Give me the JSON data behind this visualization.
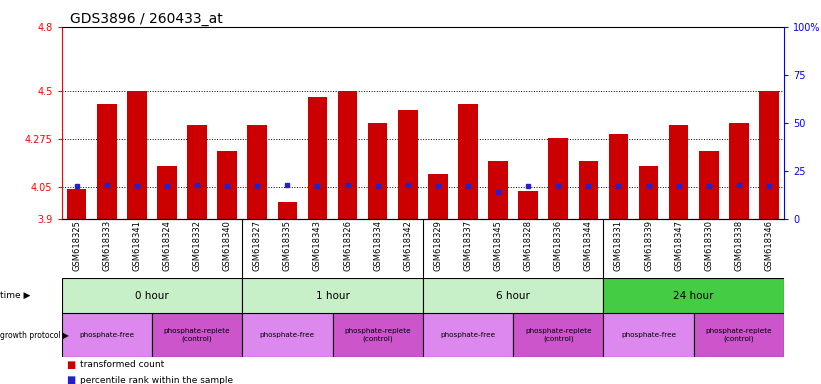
{
  "title": "GDS3896 / 260433_at",
  "samples": [
    "GSM618325",
    "GSM618333",
    "GSM618341",
    "GSM618324",
    "GSM618332",
    "GSM618340",
    "GSM618327",
    "GSM618335",
    "GSM618343",
    "GSM618326",
    "GSM618334",
    "GSM618342",
    "GSM618329",
    "GSM618337",
    "GSM618345",
    "GSM618328",
    "GSM618336",
    "GSM618344",
    "GSM618331",
    "GSM618339",
    "GSM618347",
    "GSM618330",
    "GSM618338",
    "GSM618346"
  ],
  "bar_values": [
    4.04,
    4.44,
    4.5,
    4.15,
    4.34,
    4.22,
    4.34,
    3.98,
    4.47,
    4.5,
    4.35,
    4.41,
    4.11,
    4.44,
    4.17,
    4.03,
    4.28,
    4.17,
    4.3,
    4.15,
    4.34,
    4.22,
    4.35,
    4.5
  ],
  "percentile_values": [
    4.055,
    4.057,
    4.055,
    4.056,
    4.057,
    4.056,
    4.055,
    4.057,
    4.055,
    4.06,
    4.056,
    4.057,
    4.055,
    4.056,
    4.025,
    4.055,
    4.056,
    4.055,
    4.055,
    4.055,
    4.056,
    4.055,
    4.057,
    4.055
  ],
  "y_min": 3.9,
  "y_max": 4.8,
  "y_ticks": [
    3.9,
    4.05,
    4.275,
    4.5,
    4.8
  ],
  "y_tick_labels": [
    "3.9",
    "4.05",
    "4.275",
    "4.5",
    "4.8"
  ],
  "y2_ticks": [
    0,
    25,
    50,
    75,
    100
  ],
  "y2_tick_labels": [
    "0",
    "25",
    "50",
    "75",
    "100%"
  ],
  "bar_color": "#cc0000",
  "blue_marker_color": "#2222cc",
  "bar_bottom": 3.9,
  "dotted_lines": [
    4.05,
    4.275,
    4.5
  ],
  "bg_color": "#ffffff",
  "bar_width": 0.65,
  "title_fontsize": 10,
  "tick_fontsize": 7,
  "sample_fontsize": 6,
  "time_groups": [
    {
      "label": "0 hour",
      "start": 0,
      "end": 6,
      "color": "#c8f0c8"
    },
    {
      "label": "1 hour",
      "start": 6,
      "end": 12,
      "color": "#c8f0c8"
    },
    {
      "label": "6 hour",
      "start": 12,
      "end": 18,
      "color": "#c8f0c8"
    },
    {
      "label": "24 hour",
      "start": 18,
      "end": 24,
      "color": "#44cc44"
    }
  ],
  "protocol_groups": [
    {
      "label": "phosphate-free",
      "start": 0,
      "end": 3,
      "color": "#dd88ee"
    },
    {
      "label": "phosphate-replete\n(control)",
      "start": 3,
      "end": 6,
      "color": "#cc55cc"
    },
    {
      "label": "phosphate-free",
      "start": 6,
      "end": 9,
      "color": "#dd88ee"
    },
    {
      "label": "phosphate-replete\n(control)",
      "start": 9,
      "end": 12,
      "color": "#cc55cc"
    },
    {
      "label": "phosphate-free",
      "start": 12,
      "end": 15,
      "color": "#dd88ee"
    },
    {
      "label": "phosphate-replete\n(control)",
      "start": 15,
      "end": 18,
      "color": "#cc55cc"
    },
    {
      "label": "phosphate-free",
      "start": 18,
      "end": 21,
      "color": "#dd88ee"
    },
    {
      "label": "phosphate-replete\n(control)",
      "start": 21,
      "end": 24,
      "color": "#cc55cc"
    }
  ]
}
